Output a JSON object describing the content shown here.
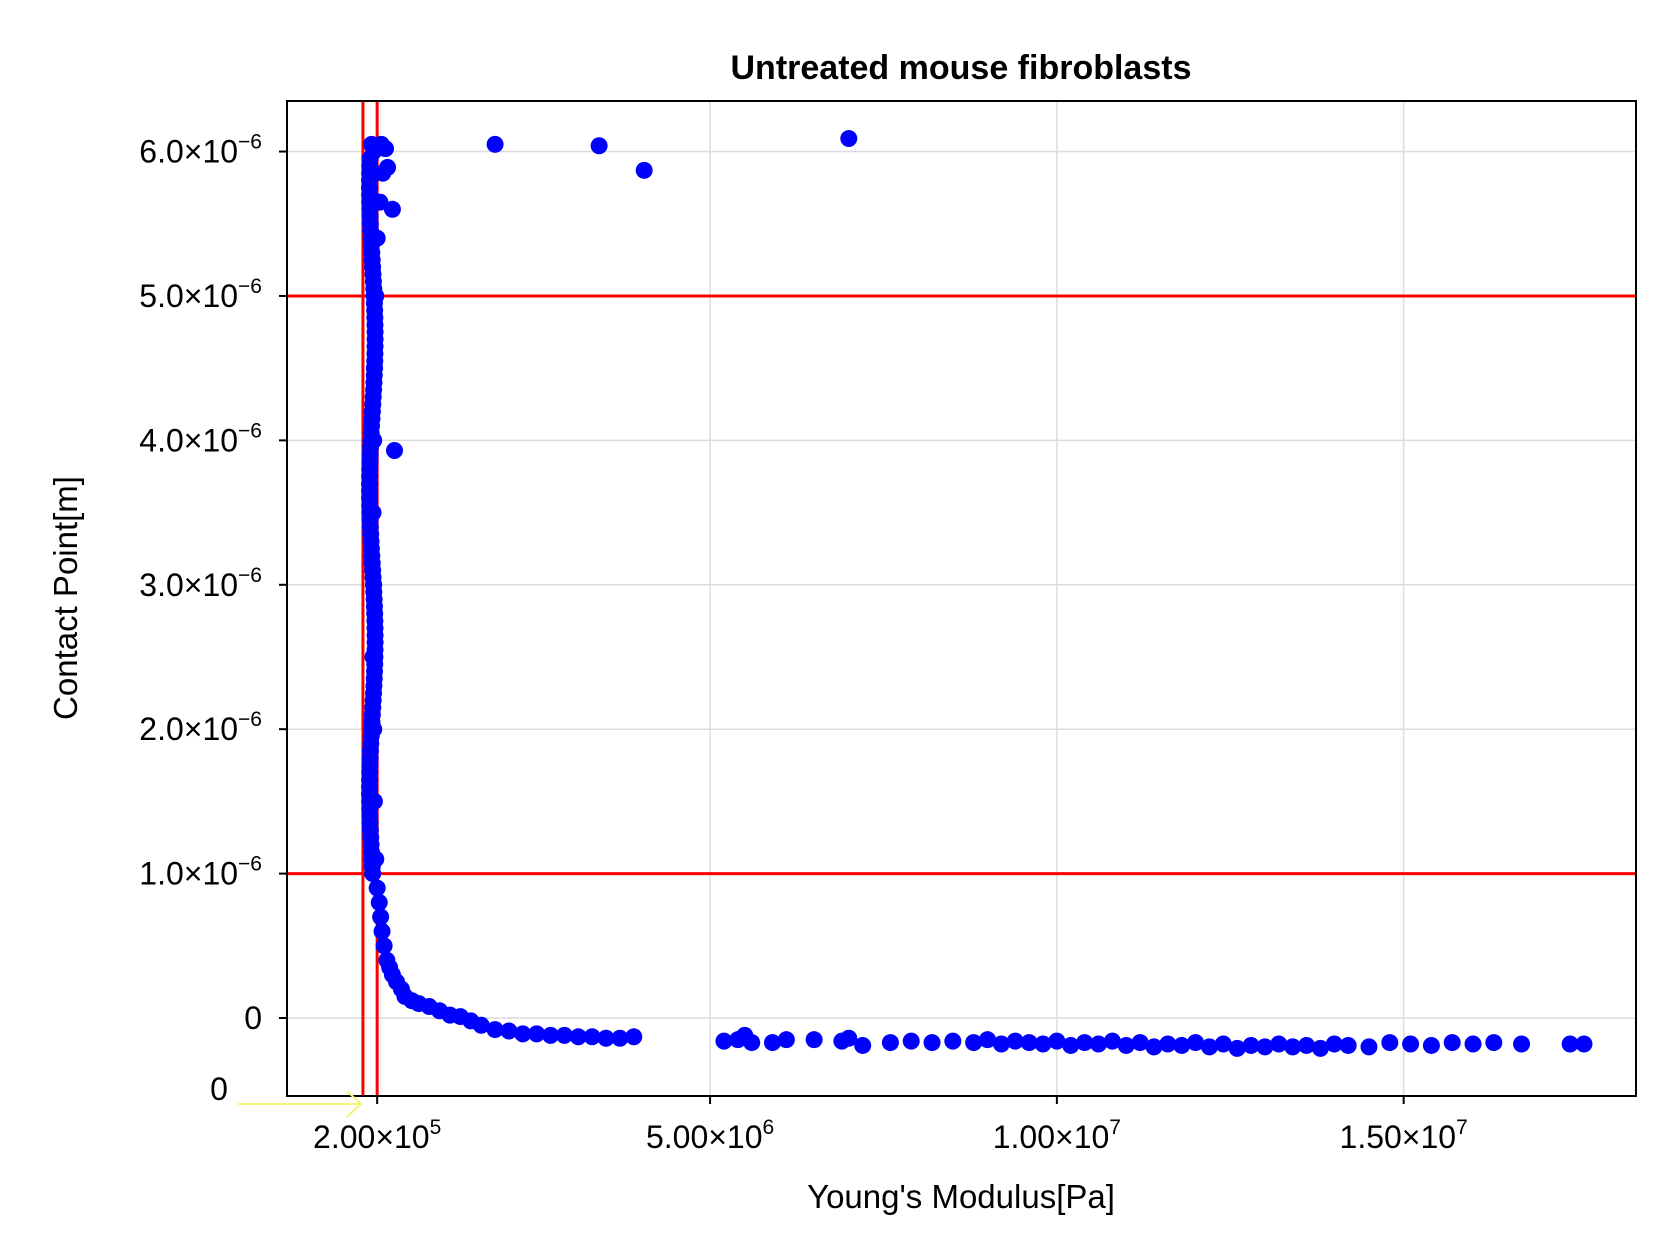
{
  "chart_data": {
    "type": "scatter",
    "title": "Untreated mouse fibroblasts",
    "xlabel": "Young's Modulus[Pa]",
    "ylabel": "Contact Point[m]",
    "xlim": [
      -1100000.0,
      18350000.0
    ],
    "ylim": [
      -5.4e-07,
      6.35e-06
    ],
    "grid": true,
    "colors": {
      "points": "#0000ff",
      "guides": "#ff0000",
      "grid": "#dcdcdc",
      "annotation_arrow": "#f5f570"
    },
    "x_ticks": [
      {
        "value": 200000,
        "mantissa": "2.00",
        "exponent": "5"
      },
      {
        "value": 5000000,
        "mantissa": "5.00",
        "exponent": "6"
      },
      {
        "value": 10000000,
        "mantissa": "1.00",
        "exponent": "7"
      },
      {
        "value": 15000000,
        "mantissa": "1.50",
        "exponent": "7"
      }
    ],
    "y_ticks": [
      {
        "value": 0,
        "mantissa": "0",
        "exponent": ""
      },
      {
        "value": 1e-06,
        "mantissa": "1.0",
        "exponent": "−6"
      },
      {
        "value": 2e-06,
        "mantissa": "2.0",
        "exponent": "−6"
      },
      {
        "value": 3e-06,
        "mantissa": "3.0",
        "exponent": "−6"
      },
      {
        "value": 4e-06,
        "mantissa": "4.0",
        "exponent": "−6"
      },
      {
        "value": 5e-06,
        "mantissa": "5.0",
        "exponent": "−6"
      },
      {
        "value": 6e-06,
        "mantissa": "6.0",
        "exponent": "−6"
      }
    ],
    "reference_lines": {
      "vertical": [
        -5000,
        200000
      ],
      "horizontal": [
        1e-06,
        5e-06
      ]
    },
    "annotation": {
      "text": "0",
      "points_to_x": -5000
    },
    "series": [
      {
        "points": [
          [
            1900000.0,
            6.05e-06
          ],
          [
            3400000.0,
            6.04e-06
          ],
          [
            4050000.0,
            5.87e-06
          ],
          [
            7000000.0,
            6.09e-06
          ],
          [
            350000,
            5.89e-06
          ],
          [
            420000,
            5.6e-06
          ],
          [
            450000,
            3.93e-06
          ],
          [
            120000,
            6.05e-06
          ],
          [
            150000,
            6e-06
          ],
          [
            180000,
            6.04e-06
          ],
          [
            260000,
            6.05e-06
          ],
          [
            320000,
            6.02e-06
          ],
          [
            280000,
            5.85e-06
          ],
          [
            240000,
            5.65e-06
          ],
          [
            200000,
            5.4e-06
          ],
          [
            180000,
            5e-06
          ],
          [
            160000,
            4.5e-06
          ],
          [
            150000,
            4e-06
          ],
          [
            140000,
            3.5e-06
          ],
          [
            150000,
            3e-06
          ],
          [
            140000,
            2.5e-06
          ],
          [
            150000,
            2e-06
          ],
          [
            160000,
            1.5e-06
          ],
          [
            180000,
            1.1e-06
          ],
          [
            200000,
            9e-07
          ],
          [
            230000,
            8e-07
          ],
          [
            250000,
            7e-07
          ],
          [
            270000,
            6e-07
          ],
          [
            300000,
            5e-07
          ],
          [
            340000,
            4e-07
          ],
          [
            380000,
            3.5e-07
          ],
          [
            420000,
            3e-07
          ],
          [
            480000,
            2.5e-07
          ],
          [
            550000,
            2e-07
          ],
          [
            600000,
            1.5e-07
          ],
          [
            700000,
            1.2e-07
          ],
          [
            800000,
            1e-07
          ],
          [
            950000,
            8e-08
          ],
          [
            1100000,
            5e-08
          ],
          [
            1250000,
            2e-08
          ],
          [
            1400000,
            1e-08
          ],
          [
            1550000,
            -2e-08
          ],
          [
            1700000,
            -5e-08
          ],
          [
            1900000,
            -8e-08
          ],
          [
            2100000,
            -9e-08
          ],
          [
            2300000,
            -1.1e-07
          ],
          [
            2500000,
            -1.1e-07
          ],
          [
            2700000,
            -1.2e-07
          ],
          [
            2900000,
            -1.2e-07
          ],
          [
            3100000,
            -1.3e-07
          ],
          [
            3300000,
            -1.3e-07
          ],
          [
            3500000,
            -1.4e-07
          ],
          [
            3700000,
            -1.4e-07
          ],
          [
            3900000,
            -1.3e-07
          ],
          [
            5200000,
            -1.6e-07
          ],
          [
            5400000,
            -1.5e-07
          ],
          [
            5500000,
            -1.2e-07
          ],
          [
            5600000,
            -1.7e-07
          ],
          [
            5900000,
            -1.7e-07
          ],
          [
            6100000,
            -1.5e-07
          ],
          [
            6500000,
            -1.5e-07
          ],
          [
            6900000,
            -1.6e-07
          ],
          [
            7000000,
            -1.4e-07
          ],
          [
            7200000,
            -1.9e-07
          ],
          [
            7600000,
            -1.7e-07
          ],
          [
            7900000,
            -1.6e-07
          ],
          [
            8200000,
            -1.7e-07
          ],
          [
            8500000,
            -1.6e-07
          ],
          [
            8800000,
            -1.7e-07
          ],
          [
            9000000,
            -1.5e-07
          ],
          [
            9200000,
            -1.8e-07
          ],
          [
            9400000,
            -1.6e-07
          ],
          [
            9600000,
            -1.7e-07
          ],
          [
            9800000,
            -1.8e-07
          ],
          [
            10000000,
            -1.6e-07
          ],
          [
            10200000,
            -1.9e-07
          ],
          [
            10400000,
            -1.7e-07
          ],
          [
            10600000,
            -1.8e-07
          ],
          [
            10800000,
            -1.6e-07
          ],
          [
            11000000,
            -1.9e-07
          ],
          [
            11200000,
            -1.7e-07
          ],
          [
            11400000,
            -2e-07
          ],
          [
            11600000,
            -1.8e-07
          ],
          [
            11800000,
            -1.9e-07
          ],
          [
            12000000,
            -1.7e-07
          ],
          [
            12200000,
            -2e-07
          ],
          [
            12400000,
            -1.8e-07
          ],
          [
            12600000,
            -2.1e-07
          ],
          [
            12800000,
            -1.9e-07
          ],
          [
            13000000,
            -2e-07
          ],
          [
            13200000,
            -1.8e-07
          ],
          [
            13400000,
            -2e-07
          ],
          [
            13600000,
            -1.9e-07
          ],
          [
            13800000,
            -2.1e-07
          ],
          [
            14000000,
            -1.8e-07
          ],
          [
            14200000,
            -1.9e-07
          ],
          [
            14500000,
            -2e-07
          ],
          [
            14800000,
            -1.7e-07
          ],
          [
            15100000,
            -1.8e-07
          ],
          [
            15400000,
            -1.9e-07
          ],
          [
            15700000,
            -1.7e-07
          ],
          [
            16000000,
            -1.8e-07
          ],
          [
            16300000,
            -1.7e-07
          ],
          [
            16700000,
            -1.8e-07
          ],
          [
            17400000,
            -1.8e-07
          ],
          [
            17600000,
            -1.8e-07
          ]
        ]
      }
    ]
  }
}
